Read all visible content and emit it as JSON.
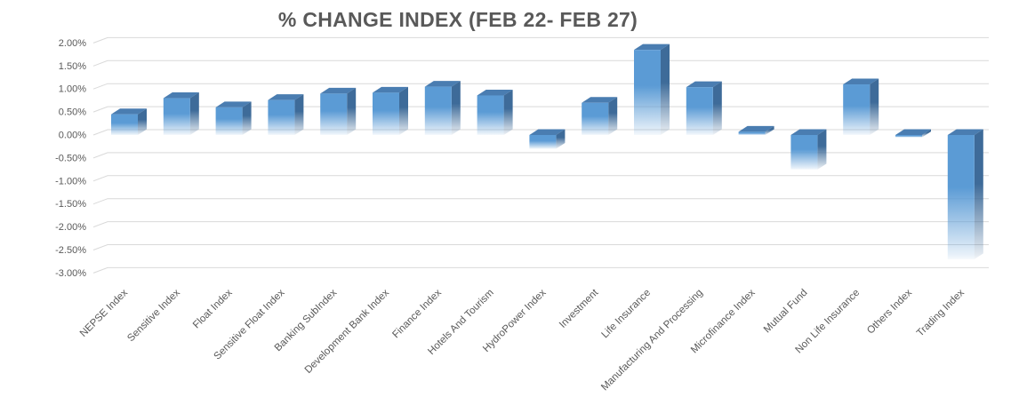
{
  "chart_data": {
    "type": "bar",
    "style": "3d-bar",
    "title": "% CHANGE INDEX (FEB 22- FEB 27)",
    "xlabel": "",
    "ylabel": "",
    "unit": "%",
    "ylim": [
      -3.0,
      2.0
    ],
    "ytick_step": 0.5,
    "grid": true,
    "legend_position": "none",
    "categories": [
      "NEPSE Index",
      "Sensitive Index",
      "Float Index",
      "Sensitive Float Index",
      "Banking SubIndex",
      "Development Bank Index",
      "Finance Index",
      "Hotels And Tourism",
      "HydroPower Index",
      "Investment",
      "Life Insurance",
      "Manufacturing And Processing",
      "Microfinance Index",
      "Mutual Fund",
      "Non Life Insurance",
      "Others Index",
      "Trading Index"
    ],
    "values": [
      0.45,
      0.8,
      0.6,
      0.76,
      0.9,
      0.92,
      1.05,
      0.86,
      -0.3,
      0.7,
      1.85,
      1.04,
      0.07,
      -0.75,
      1.1,
      -0.05,
      -2.7
    ],
    "yticks": [
      {
        "value": 2.0,
        "label": "2.00%"
      },
      {
        "value": 1.5,
        "label": "1.50%"
      },
      {
        "value": 1.0,
        "label": "1.00%"
      },
      {
        "value": 0.5,
        "label": "0.50%"
      },
      {
        "value": 0.0,
        "label": "0.00%"
      },
      {
        "value": -0.5,
        "label": "-0.50%"
      },
      {
        "value": -1.0,
        "label": "-1.00%"
      },
      {
        "value": -1.5,
        "label": "-1.50%"
      },
      {
        "value": -2.0,
        "label": "-2.00%"
      },
      {
        "value": -2.5,
        "label": "-2.50%"
      },
      {
        "value": -3.0,
        "label": "-3.00%"
      }
    ],
    "colors": {
      "bar_front": "#5B9BD5",
      "bar_top": "#4A7DB1",
      "bar_side": "#3E6B99",
      "gridline": "#D9D9D9",
      "axis_text": "#595959",
      "title_text": "#595959",
      "background": "#FFFFFF"
    }
  }
}
